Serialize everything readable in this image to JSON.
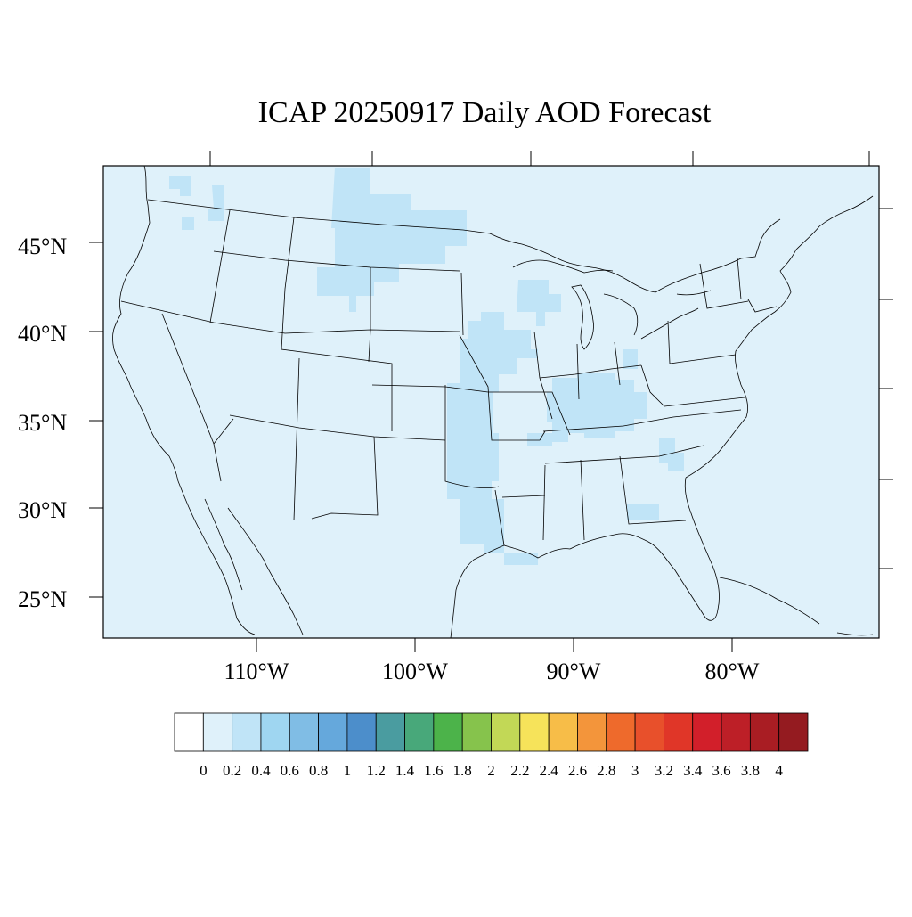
{
  "title": "ICAP 20250917 Daily AOD Forecast",
  "map": {
    "background_color": "#dff1fa",
    "aod_patch_color": "#c0e4f7",
    "lat_ticks": [
      "25°N",
      "30°N",
      "35°N",
      "40°N",
      "45°N"
    ],
    "lon_ticks": [
      "110°W",
      "100°W",
      "90°W",
      "80°W"
    ]
  },
  "colorbar": {
    "colors": [
      "#ffffff",
      "#dff1fa",
      "#c0e4f7",
      "#9fd6f1",
      "#80bde5",
      "#65a8dc",
      "#4c8ecb",
      "#4a9ca0",
      "#48a87a",
      "#4cb34a",
      "#86c34c",
      "#c2d856",
      "#f6e35a",
      "#f7bd48",
      "#f3953b",
      "#ee6a2c",
      "#e8502b",
      "#e03628",
      "#d21f2a",
      "#bd1f27",
      "#a91d23",
      "#941b20"
    ],
    "labels": [
      "0",
      "0.2",
      "0.4",
      "0.6",
      "0.8",
      "1",
      "1.2",
      "1.4",
      "1.6",
      "1.8",
      "2",
      "2.2",
      "2.4",
      "2.6",
      "2.8",
      "3",
      "3.2",
      "3.4",
      "3.6",
      "3.8",
      "4"
    ]
  }
}
